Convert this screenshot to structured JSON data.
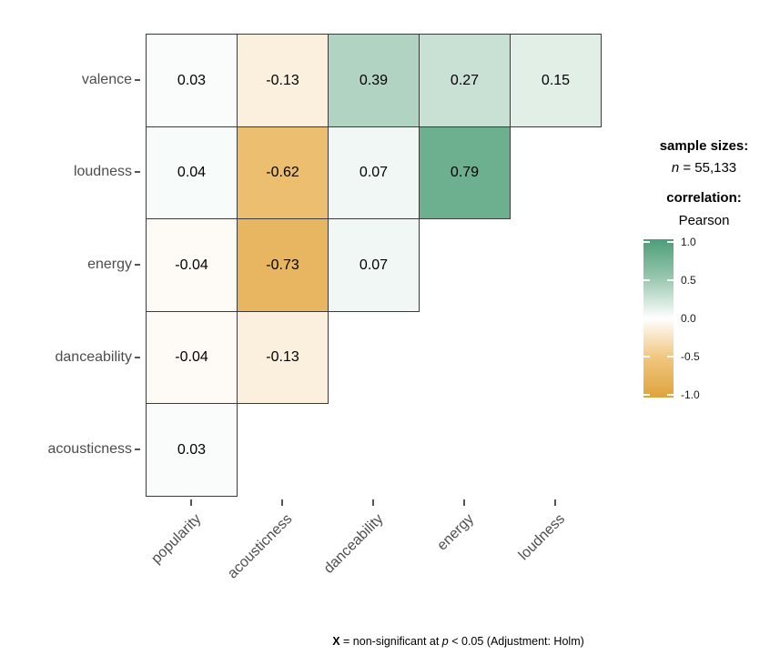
{
  "chart_data": {
    "type": "heatmap",
    "title": "",
    "rows": [
      "valence",
      "loudness",
      "energy",
      "danceability",
      "acousticness"
    ],
    "cols": [
      "popularity",
      "acousticness",
      "danceability",
      "energy",
      "loudness"
    ],
    "values": [
      [
        0.03,
        -0.13,
        0.39,
        0.27,
        0.15
      ],
      [
        0.04,
        -0.62,
        0.07,
        0.79,
        null
      ],
      [
        -0.04,
        -0.73,
        0.07,
        null,
        null
      ],
      [
        -0.04,
        -0.13,
        null,
        null,
        null
      ],
      [
        0.03,
        null,
        null,
        null,
        null
      ]
    ],
    "value_decimals": 2,
    "shape": "lower-triangle",
    "grid": false,
    "legend_position": "right",
    "color_scale": {
      "stops": [
        {
          "v": 1.0,
          "c": "#4c9e78"
        },
        {
          "v": 0.5,
          "c": "#9ac8b0"
        },
        {
          "v": 0.0,
          "c": "#ffffff"
        },
        {
          "v": -0.5,
          "c": "#f0c67e"
        },
        {
          "v": -1.0,
          "c": "#dfa33e"
        }
      ],
      "limits": [
        -1,
        1
      ]
    },
    "colorbar_ticks": [
      {
        "v": 1.0,
        "label": "1.0"
      },
      {
        "v": 0.5,
        "label": "0.5"
      },
      {
        "v": 0.0,
        "label": "0.0"
      },
      {
        "v": -0.5,
        "label": "-0.5"
      },
      {
        "v": -1.0,
        "label": "-1.0"
      }
    ]
  },
  "legend": {
    "sample_sizes_title": "sample sizes:",
    "n_symbol": "n",
    "n_value": " = 55,133",
    "correlation_title": "correlation:",
    "method": "Pearson"
  },
  "caption": {
    "x_symbol": "X",
    "mid": " = non-significant at ",
    "p_symbol": "p",
    "rest": " < 0.05 (Adjustment: Holm)"
  },
  "colors": {
    "cell_border": "#3b3b3b",
    "axis_text": "#4d4d4d",
    "tick_mark": "#555555",
    "positive_max": "#4c9e78",
    "negative_max": "#dfa33e",
    "background": "#ffffff"
  }
}
